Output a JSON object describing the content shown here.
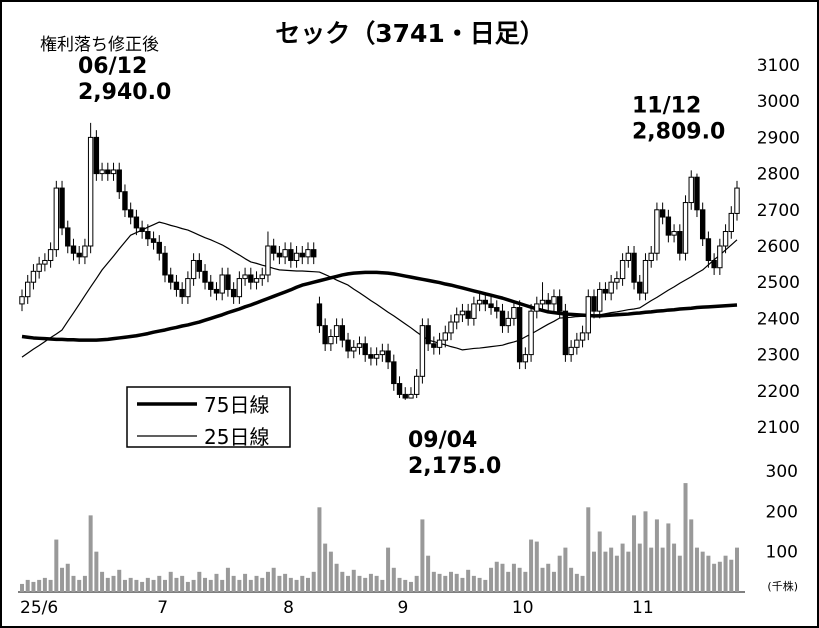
{
  "chart_data": {
    "type": "candlestick",
    "title": "セック（3741・日足）",
    "subtitle": "権利落ち修正後",
    "categories": [
      "25/6",
      null,
      null,
      null,
      null,
      null,
      null,
      null,
      null,
      null,
      null,
      null,
      null,
      null,
      null,
      null,
      null,
      null,
      null,
      null,
      null,
      null,
      null,
      null,
      "7",
      null,
      null,
      null,
      null,
      null,
      null,
      null,
      null,
      null,
      null,
      null,
      null,
      null,
      null,
      null,
      null,
      null,
      null,
      null,
      null,
      null,
      "8",
      null,
      null,
      null,
      null,
      null,
      null,
      null,
      null,
      null,
      null,
      null,
      null,
      null,
      null,
      null,
      null,
      null,
      null,
      null,
      "9",
      null,
      null,
      null,
      null,
      null,
      null,
      null,
      null,
      null,
      null,
      null,
      null,
      null,
      null,
      null,
      null,
      null,
      null,
      null,
      "10",
      null,
      null,
      null,
      null,
      null,
      null,
      null,
      null,
      null,
      null,
      null,
      null,
      null,
      null,
      null,
      null,
      null,
      null,
      null,
      null,
      "11",
      null,
      null,
      null,
      null,
      null,
      null,
      null,
      null,
      null,
      null,
      null,
      null,
      null,
      null,
      null,
      null,
      null,
      null
    ],
    "ohlc": [
      [
        2440,
        2480,
        2420,
        2460
      ],
      [
        2460,
        2520,
        2440,
        2500
      ],
      [
        2500,
        2550,
        2480,
        2530
      ],
      [
        2530,
        2570,
        2510,
        2550
      ],
      [
        2550,
        2580,
        2530,
        2560
      ],
      [
        2560,
        2610,
        2540,
        2590
      ],
      [
        2590,
        2780,
        2570,
        2760
      ],
      [
        2760,
        2780,
        2630,
        2650
      ],
      [
        2650,
        2670,
        2580,
        2600
      ],
      [
        2600,
        2620,
        2560,
        2580
      ],
      [
        2580,
        2600,
        2550,
        2570
      ],
      [
        2570,
        2620,
        2550,
        2600
      ],
      [
        2600,
        2940,
        2580,
        2900
      ],
      [
        2900,
        2920,
        2780,
        2800
      ],
      [
        2800,
        2830,
        2780,
        2810
      ],
      [
        2810,
        2830,
        2780,
        2800
      ],
      [
        2800,
        2830,
        2780,
        2810
      ],
      [
        2810,
        2830,
        2730,
        2750
      ],
      [
        2750,
        2770,
        2680,
        2700
      ],
      [
        2700,
        2720,
        2660,
        2680
      ],
      [
        2680,
        2700,
        2630,
        2650
      ],
      [
        2650,
        2670,
        2620,
        2640
      ],
      [
        2640,
        2660,
        2600,
        2620
      ],
      [
        2620,
        2640,
        2590,
        2610
      ],
      [
        2610,
        2630,
        2560,
        2580
      ],
      [
        2580,
        2600,
        2500,
        2520
      ],
      [
        2520,
        2540,
        2480,
        2500
      ],
      [
        2500,
        2520,
        2460,
        2480
      ],
      [
        2480,
        2500,
        2440,
        2460
      ],
      [
        2460,
        2530,
        2440,
        2510
      ],
      [
        2510,
        2580,
        2490,
        2560
      ],
      [
        2560,
        2580,
        2510,
        2530
      ],
      [
        2530,
        2550,
        2480,
        2500
      ],
      [
        2500,
        2520,
        2460,
        2480
      ],
      [
        2480,
        2500,
        2450,
        2470
      ],
      [
        2470,
        2540,
        2450,
        2520
      ],
      [
        2520,
        2540,
        2460,
        2480
      ],
      [
        2480,
        2500,
        2440,
        2460
      ],
      [
        2460,
        2530,
        2440,
        2510
      ],
      [
        2510,
        2540,
        2490,
        2520
      ],
      [
        2520,
        2540,
        2480,
        2500
      ],
      [
        2500,
        2530,
        2480,
        2510
      ],
      [
        2510,
        2540,
        2490,
        2520
      ],
      [
        2520,
        2640,
        2500,
        2600
      ],
      [
        2600,
        2620,
        2560,
        2580
      ],
      [
        2580,
        2600,
        2550,
        2570
      ],
      [
        2570,
        2610,
        2550,
        2590
      ],
      [
        2590,
        2610,
        2540,
        2560
      ],
      [
        2560,
        2600,
        2540,
        2580
      ],
      [
        2580,
        2600,
        2550,
        2570
      ],
      [
        2570,
        2610,
        2550,
        2590
      ],
      [
        2590,
        2610,
        2550,
        2570
      ],
      [
        2440,
        2460,
        2360,
        2380
      ],
      [
        2380,
        2400,
        2310,
        2330
      ],
      [
        2330,
        2370,
        2310,
        2350
      ],
      [
        2350,
        2400,
        2330,
        2380
      ],
      [
        2380,
        2400,
        2320,
        2340
      ],
      [
        2340,
        2360,
        2290,
        2310
      ],
      [
        2310,
        2340,
        2290,
        2320
      ],
      [
        2320,
        2350,
        2300,
        2330
      ],
      [
        2330,
        2350,
        2280,
        2300
      ],
      [
        2300,
        2320,
        2270,
        2290
      ],
      [
        2290,
        2320,
        2270,
        2300
      ],
      [
        2300,
        2330,
        2280,
        2310
      ],
      [
        2310,
        2330,
        2260,
        2280
      ],
      [
        2280,
        2300,
        2200,
        2220
      ],
      [
        2220,
        2240,
        2180,
        2190
      ],
      [
        2190,
        2210,
        2175,
        2180
      ],
      [
        2180,
        2210,
        2180,
        2190
      ],
      [
        2190,
        2260,
        2180,
        2240
      ],
      [
        2240,
        2400,
        2220,
        2380
      ],
      [
        2380,
        2400,
        2310,
        2330
      ],
      [
        2330,
        2350,
        2300,
        2320
      ],
      [
        2320,
        2360,
        2300,
        2340
      ],
      [
        2340,
        2380,
        2320,
        2360
      ],
      [
        2360,
        2410,
        2340,
        2390
      ],
      [
        2390,
        2430,
        2370,
        2410
      ],
      [
        2410,
        2440,
        2390,
        2420
      ],
      [
        2420,
        2440,
        2380,
        2400
      ],
      [
        2400,
        2460,
        2380,
        2440
      ],
      [
        2440,
        2470,
        2420,
        2450
      ],
      [
        2450,
        2470,
        2420,
        2440
      ],
      [
        2440,
        2460,
        2410,
        2430
      ],
      [
        2430,
        2450,
        2400,
        2420
      ],
      [
        2420,
        2440,
        2360,
        2380
      ],
      [
        2380,
        2420,
        2360,
        2400
      ],
      [
        2400,
        2450,
        2380,
        2430
      ],
      [
        2430,
        2450,
        2260,
        2280
      ],
      [
        2280,
        2320,
        2260,
        2300
      ],
      [
        2300,
        2440,
        2280,
        2420
      ],
      [
        2420,
        2460,
        2400,
        2440
      ],
      [
        2440,
        2500,
        2420,
        2450
      ],
      [
        2450,
        2470,
        2420,
        2440
      ],
      [
        2440,
        2480,
        2420,
        2460
      ],
      [
        2460,
        2480,
        2400,
        2420
      ],
      [
        2420,
        2440,
        2280,
        2300
      ],
      [
        2300,
        2340,
        2280,
        2320
      ],
      [
        2320,
        2360,
        2300,
        2340
      ],
      [
        2340,
        2380,
        2320,
        2360
      ],
      [
        2360,
        2480,
        2340,
        2460
      ],
      [
        2460,
        2480,
        2400,
        2420
      ],
      [
        2420,
        2500,
        2400,
        2480
      ],
      [
        2480,
        2500,
        2450,
        2470
      ],
      [
        2470,
        2520,
        2450,
        2500
      ],
      [
        2500,
        2530,
        2480,
        2510
      ],
      [
        2510,
        2580,
        2490,
        2560
      ],
      [
        2560,
        2600,
        2540,
        2580
      ],
      [
        2580,
        2600,
        2480,
        2500
      ],
      [
        2500,
        2520,
        2450,
        2470
      ],
      [
        2470,
        2580,
        2450,
        2560
      ],
      [
        2560,
        2600,
        2540,
        2580
      ],
      [
        2580,
        2720,
        2560,
        2700
      ],
      [
        2700,
        2720,
        2660,
        2680
      ],
      [
        2680,
        2700,
        2610,
        2630
      ],
      [
        2630,
        2660,
        2610,
        2640
      ],
      [
        2640,
        2660,
        2560,
        2580
      ],
      [
        2580,
        2740,
        2560,
        2720
      ],
      [
        2720,
        2809,
        2700,
        2790
      ],
      [
        2790,
        2800,
        2680,
        2700
      ],
      [
        2700,
        2720,
        2600,
        2620
      ],
      [
        2620,
        2640,
        2540,
        2560
      ],
      [
        2560,
        2580,
        2520,
        2540
      ],
      [
        2540,
        2620,
        2520,
        2600
      ],
      [
        2600,
        2660,
        2580,
        2640
      ],
      [
        2640,
        2710,
        2620,
        2690
      ],
      [
        2690,
        2780,
        2670,
        2760
      ]
    ],
    "ylim": [
      2100,
      3100
    ],
    "yticks": [
      2100,
      2200,
      2300,
      2400,
      2500,
      2600,
      2700,
      2800,
      2900,
      3000,
      3100
    ],
    "lines": [
      {
        "name": "75日線",
        "color": "#000000",
        "width": 3.5,
        "values": [
          2350,
          2348,
          2346,
          2345,
          2344,
          2343,
          2342,
          2342,
          2341,
          2341,
          2340,
          2340,
          2340,
          2340,
          2341,
          2342,
          2344,
          2346,
          2348,
          2350,
          2352,
          2355,
          2358,
          2362,
          2365,
          2368,
          2372,
          2375,
          2379,
          2382,
          2386,
          2390,
          2395,
          2400,
          2405,
          2410,
          2416,
          2421,
          2426,
          2432,
          2437,
          2443,
          2449,
          2455,
          2461,
          2467,
          2473,
          2479,
          2486,
          2492,
          2496,
          2500,
          2504,
          2508,
          2512,
          2516,
          2520,
          2523,
          2525,
          2526,
          2527,
          2527,
          2527,
          2526,
          2525,
          2523,
          2520,
          2517,
          2514,
          2511,
          2508,
          2505,
          2502,
          2499,
          2495,
          2492,
          2488,
          2484,
          2480,
          2476,
          2472,
          2468,
          2464,
          2460,
          2456,
          2451,
          2446,
          2441,
          2436,
          2431,
          2426,
          2422,
          2418,
          2416,
          2414,
          2412,
          2411,
          2410,
          2409,
          2408,
          2407,
          2407,
          2408,
          2409,
          2410,
          2411,
          2412,
          2414,
          2415,
          2417,
          2418,
          2420,
          2421,
          2423,
          2424,
          2426,
          2427,
          2428,
          2430,
          2431,
          2432,
          2433,
          2434,
          2435,
          2436,
          2437
        ]
      },
      {
        "name": "25日線",
        "color": "#000000",
        "width": 1.2,
        "values": [
          2293,
          2304,
          2315,
          2325,
          2336,
          2347,
          2357,
          2368,
          2392,
          2415,
          2439,
          2463,
          2487,
          2510,
          2534,
          2553,
          2572,
          2592,
          2611,
          2630,
          2637,
          2644,
          2652,
          2659,
          2666,
          2662,
          2657,
          2653,
          2648,
          2644,
          2637,
          2630,
          2623,
          2617,
          2610,
          2603,
          2594,
          2584,
          2575,
          2565,
          2556,
          2552,
          2547,
          2543,
          2538,
          2534,
          2533,
          2532,
          2531,
          2531,
          2530,
          2529,
          2528,
          2521,
          2514,
          2506,
          2499,
          2492,
          2481,
          2471,
          2460,
          2449,
          2439,
          2428,
          2417,
          2407,
          2396,
          2385,
          2374,
          2362,
          2351,
          2340,
          2336,
          2331,
          2327,
          2322,
          2318,
          2313,
          2315,
          2317,
          2318,
          2320,
          2322,
          2324,
          2326,
          2331,
          2335,
          2340,
          2349,
          2357,
          2366,
          2375,
          2384,
          2392,
          2401,
          2402,
          2403,
          2405,
          2406,
          2407,
          2409,
          2410,
          2413,
          2416,
          2418,
          2421,
          2424,
          2426,
          2429,
          2439,
          2449,
          2458,
          2468,
          2478,
          2487,
          2497,
          2506,
          2515,
          2525,
          2534,
          2548,
          2562,
          2575,
          2589,
          2603,
          2617
        ]
      }
    ],
    "volume": {
      "unit": "(千株)",
      "color": "#999999",
      "ylim": [
        0,
        300
      ],
      "yticks": [
        100,
        200,
        300
      ],
      "values": [
        20,
        30,
        25,
        30,
        35,
        30,
        130,
        60,
        70,
        40,
        30,
        40,
        190,
        100,
        50,
        35,
        40,
        55,
        30,
        35,
        30,
        25,
        35,
        30,
        40,
        30,
        50,
        35,
        40,
        25,
        30,
        50,
        35,
        30,
        45,
        30,
        60,
        40,
        30,
        45,
        30,
        40,
        35,
        50,
        60,
        40,
        45,
        35,
        30,
        40,
        35,
        50,
        210,
        120,
        100,
        70,
        50,
        40,
        55,
        40,
        35,
        45,
        40,
        30,
        110,
        60,
        35,
        30,
        25,
        40,
        180,
        90,
        50,
        45,
        40,
        50,
        45,
        35,
        55,
        40,
        35,
        30,
        60,
        75,
        70,
        50,
        70,
        60,
        50,
        130,
        125,
        60,
        70,
        50,
        90,
        110,
        60,
        45,
        40,
        210,
        100,
        150,
        100,
        110,
        90,
        120,
        100,
        190,
        120,
        200,
        110,
        180,
        110,
        170,
        120,
        90,
        270,
        180,
        110,
        100,
        90,
        70,
        75,
        90,
        80,
        110
      ]
    },
    "annotations": [
      {
        "date": "06/12",
        "value": 2940,
        "value_label": "2,940.0"
      },
      {
        "date": "11/12",
        "value": 2809,
        "value_label": "2,809.0"
      },
      {
        "date": "09/04",
        "value": 2175,
        "value_label": "2,175.0"
      }
    ]
  }
}
